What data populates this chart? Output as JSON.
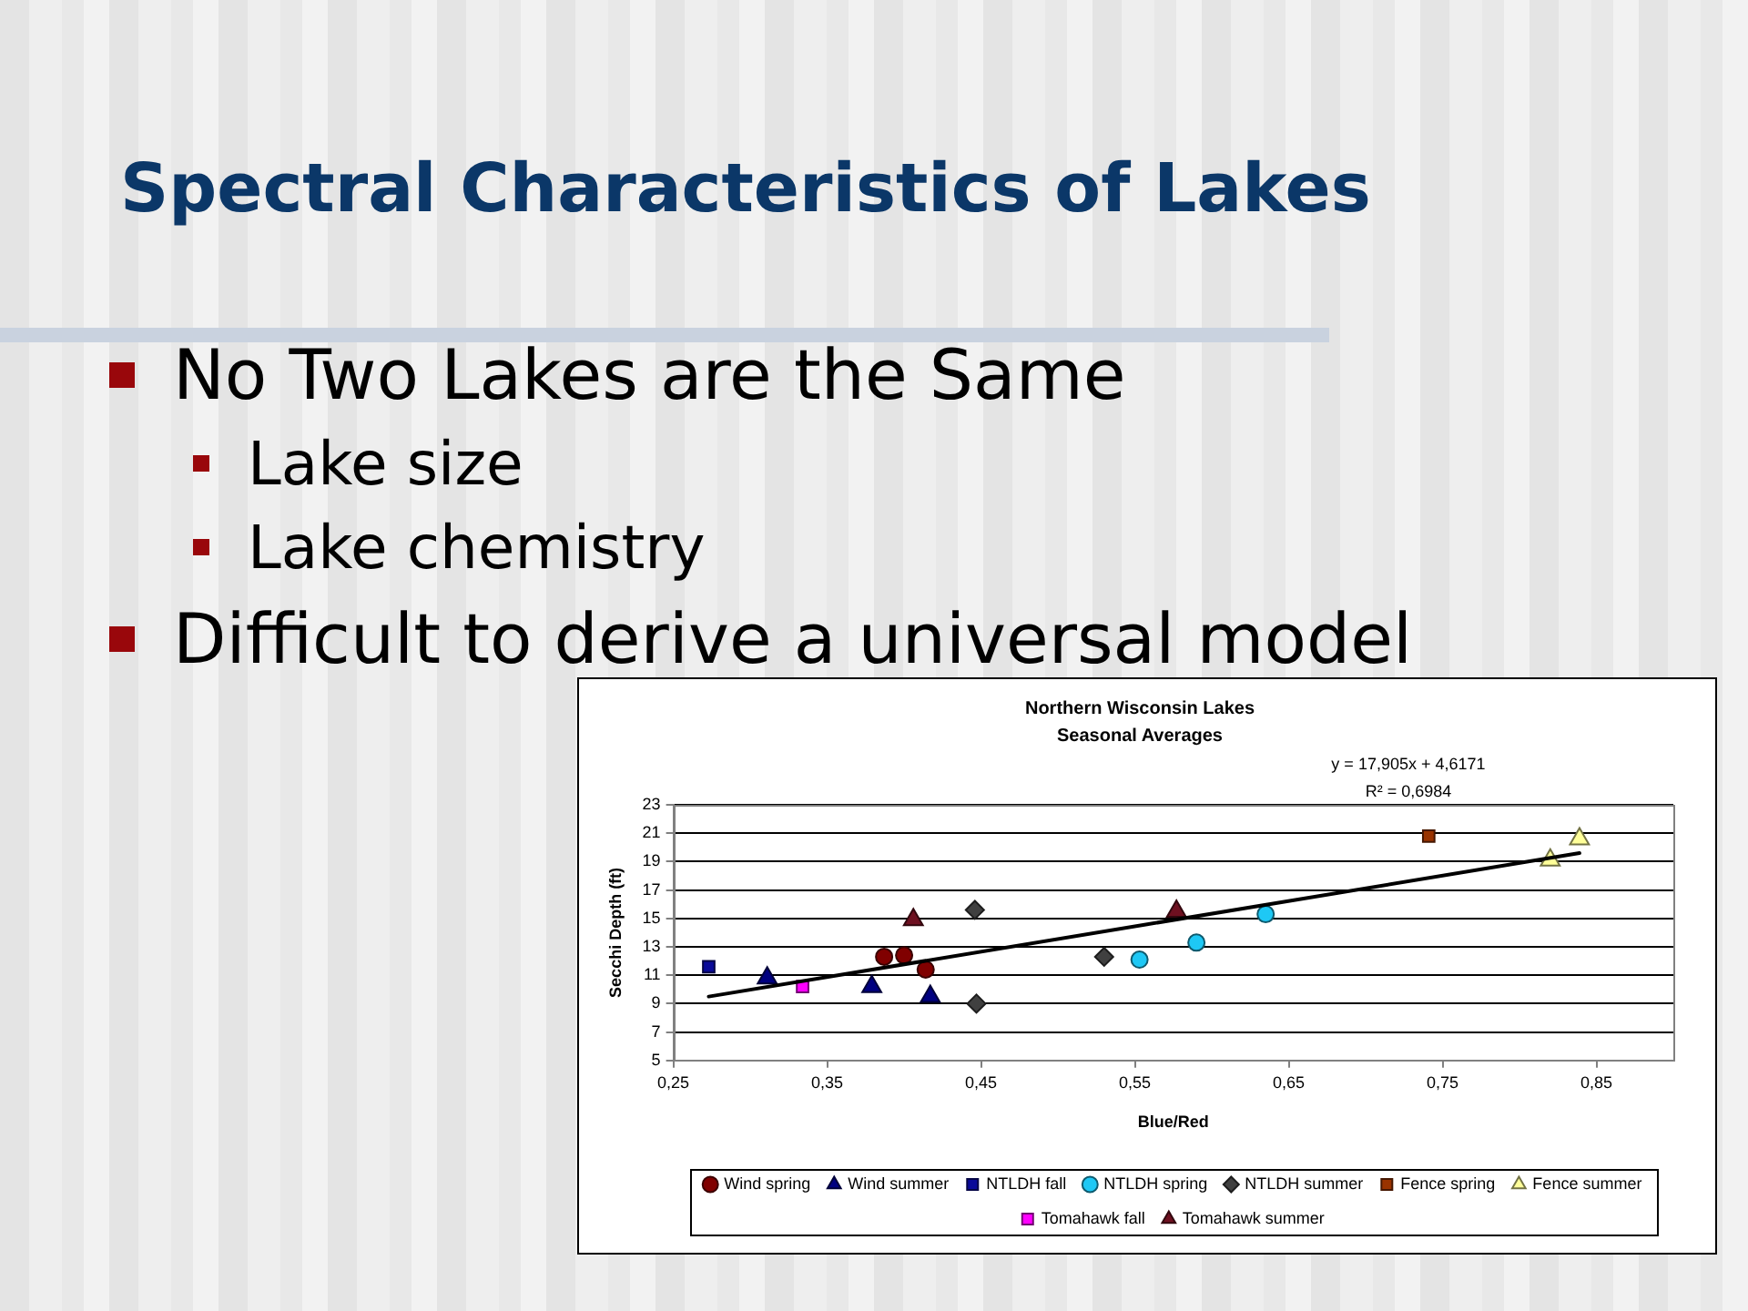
{
  "chart_data": {
    "type": "scatter",
    "title": "Northern Wisconsin Lakes",
    "subtitle": "Seasonal Averages",
    "xlabel": "Blue/Red",
    "ylabel": "Secchi Depth (ft)",
    "annotations": [
      "Spectral Characteristics of Lakes",
      "No Two Lakes are the Same",
      "Lake size",
      "Lake chemistry",
      "Difficult to derive a universal model",
      "y = 17,905x + 4,6171",
      "R² = 0,6984"
    ],
    "xlim": [
      0.25,
      0.9
    ],
    "xticks": [
      {
        "value": 0.25,
        "label": "0,25"
      },
      {
        "value": 0.35,
        "label": "0,35"
      },
      {
        "value": 0.45,
        "label": "0,45"
      },
      {
        "value": 0.55,
        "label": "0,55"
      },
      {
        "value": 0.65,
        "label": "0,65"
      },
      {
        "value": 0.75,
        "label": "0,75"
      },
      {
        "value": 0.85,
        "label": "0,85"
      }
    ],
    "ylim": [
      5,
      23
    ],
    "yticks": [
      5,
      7,
      9,
      11,
      13,
      15,
      17,
      19,
      21,
      23
    ],
    "grid": "y",
    "legend": "bottom",
    "series": [
      {
        "name": "Wind spring",
        "color": "#800000",
        "marker": "circle",
        "x": [
          0.387,
          0.4,
          0.414
        ],
        "values": [
          12.3,
          12.4,
          11.4
        ]
      },
      {
        "name": "Wind summer",
        "color": "#000080",
        "marker": "triangle",
        "x": [
          0.311,
          0.379,
          0.417
        ],
        "values": [
          10.8,
          10.2,
          9.5
        ]
      },
      {
        "name": "NTLDH fall",
        "color": "#0a0a99",
        "marker": "square",
        "x": [
          0.273
        ],
        "values": [
          11.6
        ]
      },
      {
        "name": "NTLDH spring",
        "color": "#1ec8f5",
        "marker": "circle",
        "x": [
          0.553,
          0.59,
          0.635
        ],
        "values": [
          12.1,
          13.3,
          15.3
        ]
      },
      {
        "name": "NTLDH summer",
        "color": "#404040",
        "marker": "diamond",
        "x": [
          0.446,
          0.447,
          0.53
        ],
        "values": [
          15.6,
          9.0,
          12.3
        ]
      },
      {
        "name": "Fence spring",
        "color": "#993300",
        "marker": "square",
        "x": [
          0.741
        ],
        "values": [
          20.8
        ]
      },
      {
        "name": "Fence summer",
        "color": "#ffff99",
        "marker": "triangle",
        "x": [
          0.82,
          0.839
        ],
        "values": [
          19.1,
          20.6
        ]
      },
      {
        "name": "Tomahawk fall",
        "color": "#ff00ff",
        "marker": "square",
        "x": [
          0.334
        ],
        "values": [
          10.2
        ]
      },
      {
        "name": "Tomahawk summer",
        "color": "#6e1020",
        "marker": "triangle",
        "x": [
          0.406,
          0.577
        ],
        "values": [
          14.9,
          15.5
        ]
      },
      {
        "type": "line",
        "color": "#000000",
        "marker": "none",
        "x": [
          0.273,
          0.839
        ],
        "values": [
          9.5,
          19.6
        ]
      }
    ]
  }
}
